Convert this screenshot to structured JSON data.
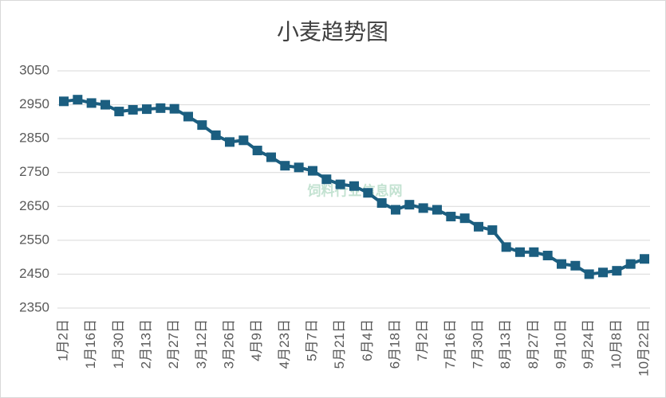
{
  "chart_data": {
    "type": "line",
    "title": "小麦趋势图",
    "watermark": "饲料行业信息网",
    "categories": [
      "1月2日",
      null,
      "1月16日",
      null,
      "1月30日",
      null,
      "2月13日",
      null,
      "2月27日",
      null,
      "3月12日",
      null,
      "3月26日",
      null,
      "4月9日",
      null,
      "4月23日",
      null,
      "5月7日",
      null,
      "5月21日",
      null,
      "6月4日",
      null,
      "6月18日",
      null,
      "7月2日",
      null,
      "7月16日",
      null,
      "7月30日",
      null,
      "8月13日",
      null,
      "8月27日",
      null,
      "9月10日",
      null,
      "9月24日",
      null,
      "10月8日",
      null,
      "10月22日"
    ],
    "series": [
      {
        "name": "小麦",
        "color": "#1b5e80",
        "values": [
          2960,
          2965,
          2955,
          2950,
          2930,
          2935,
          2937,
          2940,
          2938,
          2915,
          2890,
          2860,
          2840,
          2845,
          2815,
          2795,
          2770,
          2765,
          2755,
          2730,
          2715,
          2710,
          2690,
          2660,
          2640,
          2655,
          2645,
          2640,
          2620,
          2615,
          2590,
          2580,
          2530,
          2515,
          2515,
          2505,
          2480,
          2475,
          2450,
          2455,
          2460,
          2480,
          2495
        ]
      }
    ],
    "ylim": [
      2350,
      3050
    ],
    "yticks": [
      2350,
      2450,
      2550,
      2650,
      2750,
      2850,
      2950,
      3050
    ],
    "grid": true
  }
}
